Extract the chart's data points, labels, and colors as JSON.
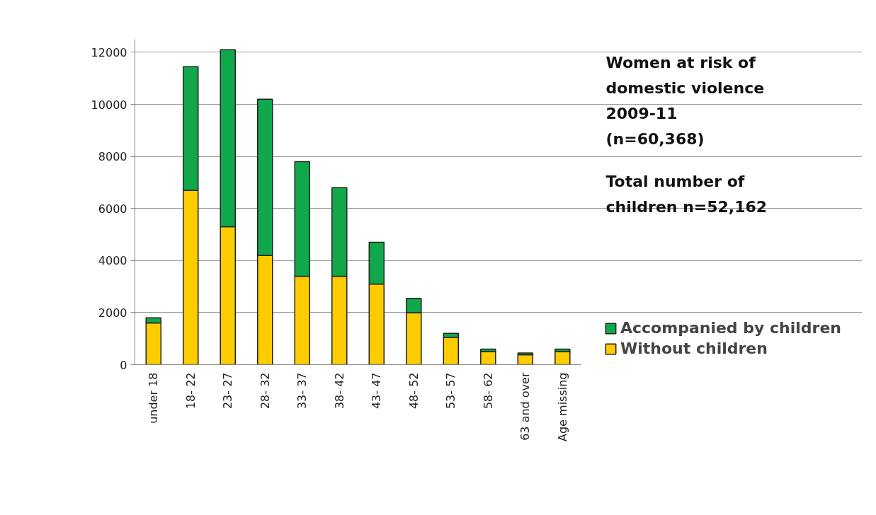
{
  "chart_data": {
    "type": "bar",
    "stacked": true,
    "title": "Women at risk of domestic violence 2009-11 (n=60,368)",
    "annotations": [
      "Total number of children n=52,162"
    ],
    "categories": [
      "under 18",
      "18- 22",
      "23- 27",
      "28- 32",
      "33- 37",
      "38- 42",
      "43- 47",
      "48- 52",
      "53- 57",
      "58- 62",
      "63 and over",
      "Age missing"
    ],
    "series": [
      {
        "name": "Without children",
        "color": "#ffcc00",
        "values": [
          1600,
          6700,
          5300,
          4200,
          3400,
          3400,
          3100,
          2000,
          1050,
          500,
          380,
          500
        ]
      },
      {
        "name": "Accompanied by children",
        "color": "#10a84a",
        "values": [
          200,
          4750,
          6800,
          6000,
          4400,
          3400,
          1600,
          550,
          150,
          100,
          70,
          100
        ]
      }
    ],
    "ylim": [
      0,
      12500
    ],
    "yticks": [
      0,
      2000,
      4000,
      6000,
      8000,
      10000,
      12000
    ],
    "grid": "y",
    "legend": "right"
  }
}
